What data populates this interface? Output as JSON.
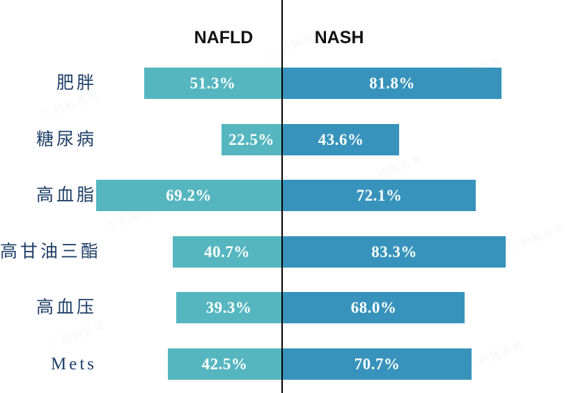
{
  "chart_data": {
    "type": "bar",
    "variant": "butterfly-comparison",
    "title": "",
    "categories": [
      "肥胖",
      "糖尿病",
      "高血脂",
      "高甘油三酯",
      "高血压",
      "Mets"
    ],
    "series": [
      {
        "name": "NAFLD",
        "side": "left",
        "color": "#56b6c0",
        "values": [
          51.3,
          22.5,
          69.2,
          40.7,
          39.3,
          42.5
        ],
        "labels": [
          "51.3%",
          "22.5%",
          "69.2%",
          "40.7%",
          "39.3%",
          "42.5%"
        ]
      },
      {
        "name": "NASH",
        "side": "right",
        "color": "#3793bb",
        "values": [
          81.8,
          43.6,
          72.1,
          83.3,
          68.0,
          70.7
        ],
        "labels": [
          "81.8%",
          "43.6%",
          "72.1%",
          "83.3%",
          "68.0%",
          "70.7%"
        ]
      }
    ],
    "value_unit": "%",
    "xlim": [
      0,
      100
    ],
    "axis_visible": false,
    "gridlines": false,
    "legend_position": "top-column-headers",
    "category_label_color": "#1f4068",
    "value_label_color": "#ffffff",
    "divider_color": "#000000"
  },
  "watermark": {
    "text": "药融咨询"
  }
}
